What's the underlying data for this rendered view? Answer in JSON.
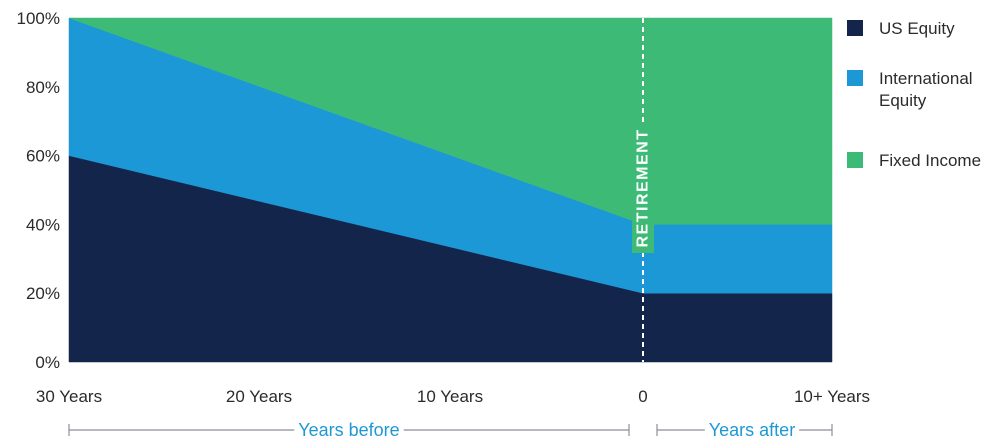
{
  "chart_data": {
    "type": "area",
    "stacked": true,
    "x": [
      30,
      0,
      -10
    ],
    "x_tick_labels": [
      "30 Years",
      "20 Years",
      "10 Years",
      "0",
      "10+ Years"
    ],
    "y_tick_labels": [
      "0%",
      "20%",
      "40%",
      "60%",
      "80%",
      "100%"
    ],
    "ylim": [
      0,
      100
    ],
    "series": [
      {
        "name": "US Equity",
        "values": [
          60,
          20,
          20
        ],
        "color": "#13254a"
      },
      {
        "name": "International Equity",
        "values": [
          40,
          20,
          20
        ],
        "color": "#1c98d6"
      },
      {
        "name": "Fixed Income",
        "values": [
          0,
          60,
          60
        ],
        "color": "#3dbb76"
      }
    ],
    "legend": {
      "position": "right",
      "items": [
        {
          "lines": [
            "US Equity"
          ],
          "color": "#13254a"
        },
        {
          "lines": [
            "International",
            "Equity"
          ],
          "color": "#1c98d6"
        },
        {
          "lines": [
            "Fixed Income"
          ],
          "color": "#3dbb76"
        }
      ]
    },
    "annotation": "RETIREMENT",
    "spans": [
      {
        "label": "Years before"
      },
      {
        "label": "Years after"
      }
    ]
  }
}
